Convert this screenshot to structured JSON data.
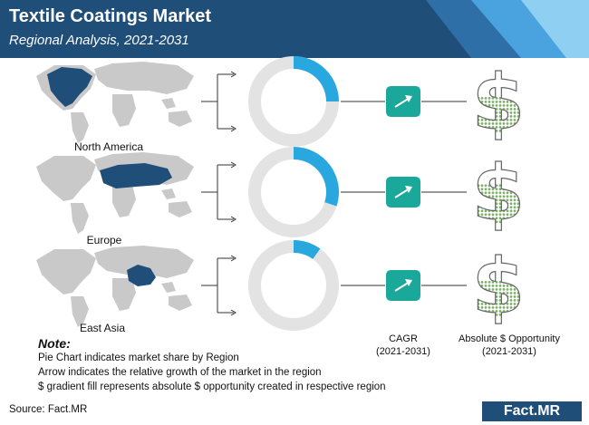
{
  "header": {
    "title": "Textile Coatings Market",
    "subtitle": "Regional Analysis, 2021-2031"
  },
  "colors": {
    "header_dark": "#1f4e79",
    "header_light": "#4aa3df",
    "donut_share": "#29a8e0",
    "donut_rest": "#e3e3e3",
    "arrow_box": "#1aa89a",
    "dollar_dots": "#7fb069",
    "map_land": "#c9c9c9",
    "map_highlight": "#1f4e79"
  },
  "chart_data": {
    "type": "pie",
    "description_note": "Pie Chart indicates market share by Region",
    "regions": [
      {
        "name": "North America",
        "market_share": 0.25,
        "icons": [
          "world-map-icon",
          "growth-arrow-icon",
          "dollar-icon"
        ]
      },
      {
        "name": "Europe",
        "market_share": 0.3,
        "icons": [
          "world-map-icon",
          "growth-arrow-icon",
          "dollar-icon"
        ]
      },
      {
        "name": "East Asia",
        "market_share": 0.1,
        "icons": [
          "world-map-icon",
          "growth-arrow-icon",
          "dollar-icon"
        ]
      }
    ],
    "dollar_fill_fraction": [
      0.55,
      0.6,
      0.55
    ]
  },
  "columns": {
    "cagr_label": "CAGR",
    "cagr_period": "(2021-2031)",
    "opportunity_label": "Absolute $ Opportunity",
    "opportunity_period": "(2021-2031)"
  },
  "notes": {
    "title": "Note:",
    "lines": [
      "Pie Chart indicates market share by Region",
      "Arrow indicates the relative growth of the market in the region",
      "$ gradient fill represents absolute $ opportunity created in respective region"
    ]
  },
  "footer": {
    "source": "Source: Fact.MR",
    "brand": "Fact.MR"
  }
}
